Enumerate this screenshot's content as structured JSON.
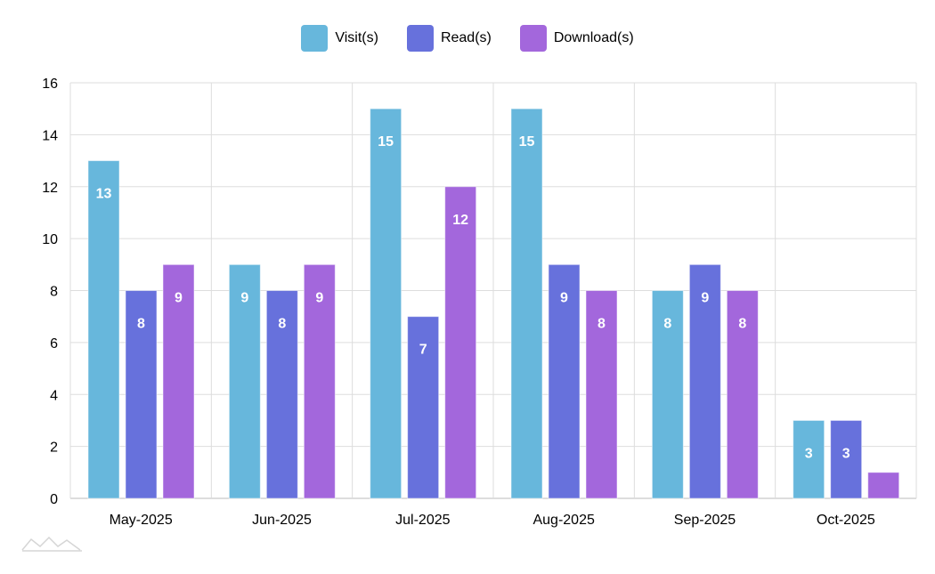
{
  "chart_data": {
    "type": "bar",
    "categories": [
      "May-2025",
      "Jun-2025",
      "Jul-2025",
      "Aug-2025",
      "Sep-2025",
      "Oct-2025"
    ],
    "series": [
      {
        "name": "Visit(s)",
        "color": "#67b7dc",
        "values": [
          13,
          9,
          15,
          15,
          8,
          3
        ]
      },
      {
        "name": "Read(s)",
        "color": "#6771dc",
        "values": [
          8,
          8,
          7,
          9,
          9,
          3
        ]
      },
      {
        "name": "Download(s)",
        "color": "#a367dc",
        "values": [
          9,
          9,
          12,
          8,
          8,
          1
        ]
      }
    ],
    "ylim": [
      0,
      16
    ],
    "yticks": [
      0,
      2,
      4,
      6,
      8,
      10,
      12,
      14,
      16
    ],
    "grid": true,
    "legend_position": "top-center",
    "title": "",
    "xlabel": "",
    "ylabel": ""
  }
}
